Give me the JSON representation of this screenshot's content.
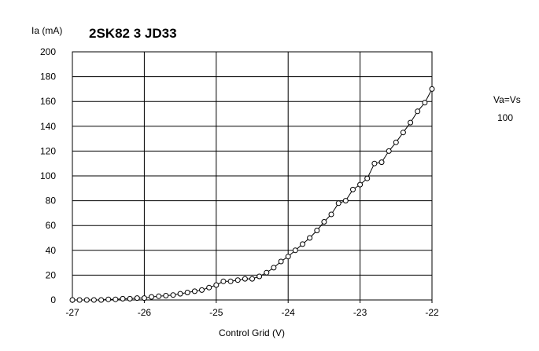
{
  "chart_data": {
    "type": "line",
    "title": "2SK82 3 JD33",
    "xlabel": "Control Grid (V)",
    "ylabel": "Ia (mA)",
    "xlim": [
      -27,
      -22
    ],
    "ylim": [
      0,
      200
    ],
    "x_ticks": [
      "-27",
      "-26",
      "-25",
      "-24",
      "-23",
      "-22"
    ],
    "y_ticks": [
      "0",
      "20",
      "40",
      "60",
      "80",
      "100",
      "120",
      "140",
      "160",
      "180",
      "200"
    ],
    "x_tick_values": [
      -27,
      -26,
      -25,
      -24,
      -23,
      -22
    ],
    "y_tick_values": [
      0,
      20,
      40,
      60,
      80,
      100,
      120,
      140,
      160,
      180,
      200
    ],
    "grid": true,
    "legend": {
      "title": "Va=Vs",
      "entries": [
        "100"
      ],
      "placement": "right"
    },
    "series": [
      {
        "name": "100",
        "color": "#000000",
        "marker": "circle",
        "x": [
          -27.0,
          -26.9,
          -26.8,
          -26.7,
          -26.6,
          -26.5,
          -26.4,
          -26.3,
          -26.2,
          -26.1,
          -26.0,
          -25.9,
          -25.8,
          -25.7,
          -25.6,
          -25.5,
          -25.4,
          -25.3,
          -25.2,
          -25.1,
          -25.0,
          -24.9,
          -24.8,
          -24.7,
          -24.6,
          -24.5,
          -24.4,
          -24.3,
          -24.2,
          -24.1,
          -24.0,
          -23.9,
          -23.8,
          -23.7,
          -23.6,
          -23.5,
          -23.4,
          -23.3,
          -23.2,
          -23.1,
          -23.0,
          -22.9,
          -22.8,
          -22.7,
          -22.6,
          -22.5,
          -22.4,
          -22.3,
          -22.2,
          -22.1,
          -22.0
        ],
        "y": [
          0,
          0,
          0,
          0,
          0,
          0.5,
          0.5,
          1,
          1,
          1.5,
          1.5,
          2.5,
          3,
          3.5,
          4,
          5,
          6,
          7,
          8,
          10,
          12,
          15,
          15,
          16,
          17,
          17,
          19,
          22,
          26,
          31,
          35,
          40,
          45,
          50,
          56,
          63,
          69,
          78,
          80,
          89,
          93,
          98,
          110,
          111,
          120,
          127,
          135,
          143,
          152,
          159,
          170
        ]
      }
    ]
  }
}
